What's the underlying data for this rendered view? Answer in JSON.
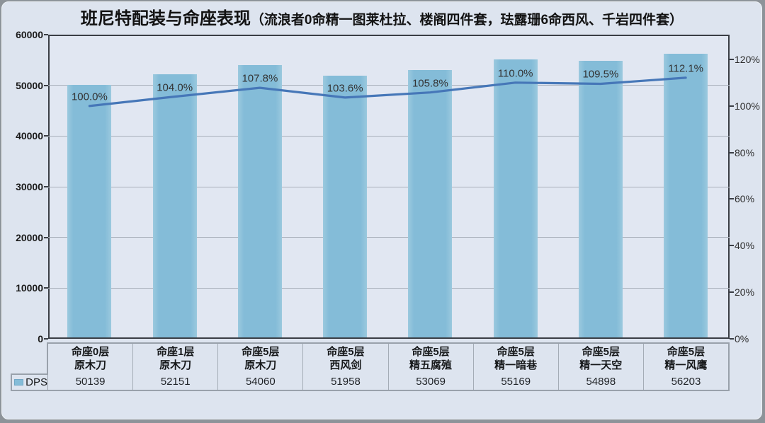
{
  "title": {
    "main": "班尼特配装与命座表现",
    "sub": "（流浪者0命精一图莱杜拉、楼阁四件套，珐露珊6命西风、千岩四件套）"
  },
  "legend": {
    "label": "DPS"
  },
  "colors": {
    "bar": "#84bcd8",
    "line": "#4677b8",
    "card_background": "#dde4ef",
    "plot_background": "#e1e7f2",
    "gridline": "#a9b0bb",
    "plot_border": "#3a3e45",
    "table_border": "#99a1ab"
  },
  "chart_data": {
    "type": "bar+line",
    "title": "班尼特配装与命座表现（流浪者0命精一图莱杜拉、楼阁四件套，珐露珊6命西风、千岩四件套）",
    "categories": [
      [
        "命座0层",
        "原木刀"
      ],
      [
        "命座1层",
        "原木刀"
      ],
      [
        "命座5层",
        "原木刀"
      ],
      [
        "命座5层",
        "西风剑"
      ],
      [
        "命座5层",
        "精五腐殖"
      ],
      [
        "命座5层",
        "精一暗巷"
      ],
      [
        "命座5层",
        "精一天空"
      ],
      [
        "命座5层",
        "精一风鹰"
      ]
    ],
    "bar_series": {
      "name": "DPS",
      "axis": "left",
      "values": [
        50139,
        52151,
        54060,
        51958,
        53069,
        55169,
        54898,
        56203
      ]
    },
    "line_series": {
      "axis": "right",
      "values": [
        100.0,
        104.0,
        107.8,
        103.6,
        105.8,
        110.0,
        109.5,
        112.1
      ],
      "labels": [
        "100.0%",
        "104.0%",
        "107.8%",
        "103.6%",
        "105.8%",
        "110.0%",
        "109.5%",
        "112.1%"
      ]
    },
    "left_axis": {
      "range": [
        0,
        60000
      ],
      "ticks": [
        0,
        10000,
        20000,
        30000,
        40000,
        50000,
        60000
      ]
    },
    "right_axis": {
      "ticks": [
        "0%",
        "20%",
        "40%",
        "60%",
        "80%",
        "100%",
        "120%"
      ],
      "tick_values": [
        0,
        20,
        40,
        60,
        80,
        100,
        120
      ],
      "plot_top_value": 130.6
    },
    "grid": "horizontal",
    "legend_position": "bottom-left-of-table"
  }
}
